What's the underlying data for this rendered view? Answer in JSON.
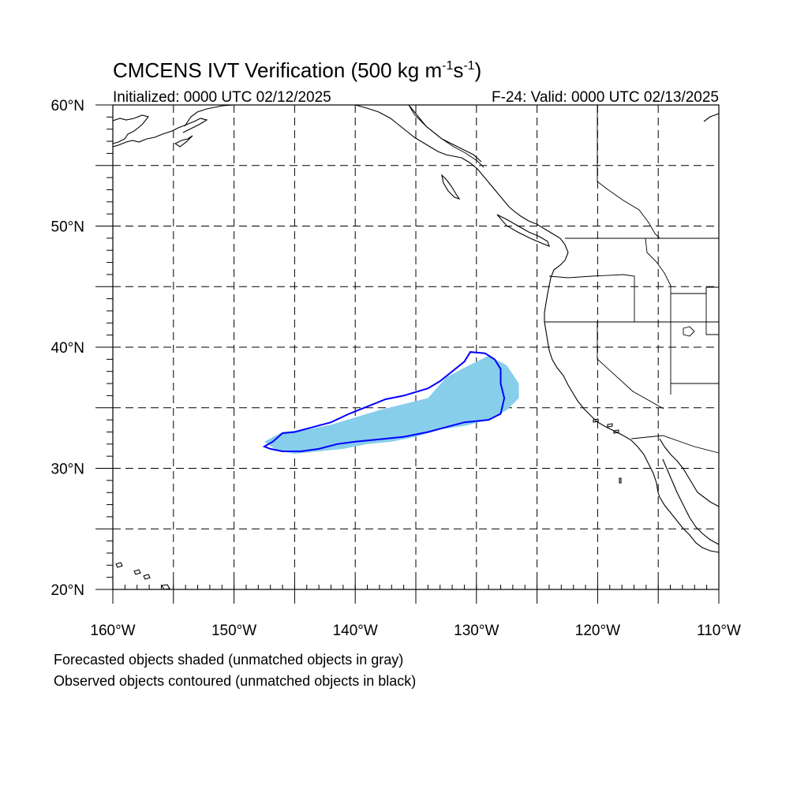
{
  "title": {
    "prefix": "CMCENS IVT Verification (500 kg m",
    "exp1": "-1",
    "mid": "s",
    "exp2": "-1",
    "suffix": ")"
  },
  "init_label": "Initialized: 0000 UTC 02/12/2025",
  "valid_label": "F-24: Valid: 0000 UTC 02/13/2025",
  "axes": {
    "lon_range": [
      -160,
      -110
    ],
    "lat_range": [
      20,
      60
    ],
    "lon_ticks": [
      {
        "value": -160,
        "label": "160°W"
      },
      {
        "value": -150,
        "label": "150°W"
      },
      {
        "value": -140,
        "label": "140°W"
      },
      {
        "value": -130,
        "label": "130°W"
      },
      {
        "value": -120,
        "label": "120°W"
      },
      {
        "value": -110,
        "label": "110°W"
      }
    ],
    "lat_ticks": [
      {
        "value": 60,
        "label": "60°N"
      },
      {
        "value": 50,
        "label": "50°N"
      },
      {
        "value": 40,
        "label": "40°N"
      },
      {
        "value": 30,
        "label": "30°N"
      },
      {
        "value": 20,
        "label": "20°N"
      }
    ],
    "grid_spacing_deg": 5,
    "grid": true
  },
  "colors": {
    "forecast_fill": "#87ceeb",
    "observed_contour": "#0000ff",
    "coastline": "#000000",
    "grid": "#000000"
  },
  "objects": {
    "forecast_shaded": [
      [
        -147.5,
        32.2
      ],
      [
        -146,
        33
      ],
      [
        -144,
        33.2
      ],
      [
        -142,
        33.6
      ],
      [
        -140,
        34.2
      ],
      [
        -138,
        34.8
      ],
      [
        -136,
        35.3
      ],
      [
        -134,
        35.8
      ],
      [
        -132.5,
        37.5
      ],
      [
        -131,
        38.3
      ],
      [
        -129,
        39.3
      ],
      [
        -127.5,
        38.5
      ],
      [
        -126.5,
        37
      ],
      [
        -126.5,
        35.8
      ],
      [
        -127.5,
        34.8
      ],
      [
        -129,
        34
      ],
      [
        -131,
        33.5
      ],
      [
        -133,
        33.2
      ],
      [
        -135,
        32.6
      ],
      [
        -137,
        32.2
      ],
      [
        -139,
        32
      ],
      [
        -141,
        31.6
      ],
      [
        -143,
        31.4
      ],
      [
        -145,
        31.2
      ],
      [
        -146.5,
        31.5
      ]
    ],
    "observed_contour": [
      [
        -147.5,
        31.8
      ],
      [
        -146.8,
        32.2
      ],
      [
        -146,
        32.9
      ],
      [
        -145,
        33
      ],
      [
        -143.5,
        33.4
      ],
      [
        -142,
        33.8
      ],
      [
        -140.5,
        34.5
      ],
      [
        -139,
        35.1
      ],
      [
        -137.5,
        35.7
      ],
      [
        -136,
        36
      ],
      [
        -134,
        36.6
      ],
      [
        -133,
        37.2
      ],
      [
        -132,
        38
      ],
      [
        -131,
        38.8
      ],
      [
        -130.5,
        39.6
      ],
      [
        -129.3,
        39.5
      ],
      [
        -128.5,
        39
      ],
      [
        -128,
        38.2
      ],
      [
        -128,
        37
      ],
      [
        -127.7,
        35.8
      ],
      [
        -128,
        34.5
      ],
      [
        -129,
        34
      ],
      [
        -131,
        33.8
      ],
      [
        -132.5,
        33.4
      ],
      [
        -134,
        33
      ],
      [
        -136,
        32.6
      ],
      [
        -138,
        32.4
      ],
      [
        -140,
        32.2
      ],
      [
        -141.5,
        32
      ],
      [
        -143,
        31.6
      ],
      [
        -144.5,
        31.4
      ],
      [
        -146,
        31.4
      ],
      [
        -147,
        31.6
      ]
    ]
  },
  "footnotes": [
    "Forecasted objects shaded (unmatched objects in gray)",
    "Observed objects contoured (unmatched objects in black)"
  ]
}
